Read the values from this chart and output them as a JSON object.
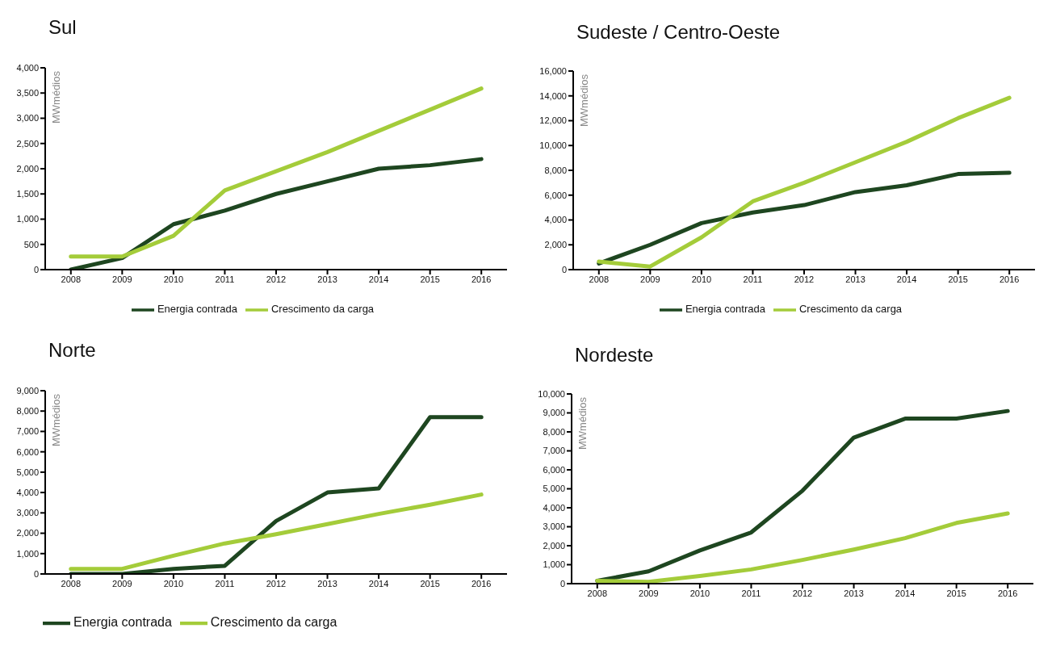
{
  "chart_data": [
    {
      "type": "line",
      "title": "Sul",
      "ylabel": "MWmédios",
      "categories": [
        "2008",
        "2009",
        "2010",
        "2011",
        "2012",
        "2013",
        "2014",
        "2015",
        "2016"
      ],
      "ylim": [
        0,
        4000
      ],
      "yticks": [
        {
          "value": 0,
          "label": "0"
        },
        {
          "value": 500,
          "label": "500"
        },
        {
          "value": 1000,
          "label": "1,000"
        },
        {
          "value": 1500,
          "label": "1,500"
        },
        {
          "value": 2000,
          "label": "2,000"
        },
        {
          "value": 2500,
          "label": "2,500"
        },
        {
          "value": 3000,
          "label": "3,000"
        },
        {
          "value": 3500,
          "label": "3,500"
        },
        {
          "value": 4000,
          "label": "4,000"
        }
      ],
      "grid": false,
      "legend": "bottom",
      "marker": "none",
      "line_style": "solid",
      "series": [
        {
          "name": "Energia contrada",
          "color": "#1e4620",
          "values": [
            0,
            230,
            900,
            1170,
            1500,
            1750,
            2000,
            2070,
            2190
          ]
        },
        {
          "name": "Crescimento da carga",
          "color": "#a4cc3a",
          "values": [
            260,
            260,
            670,
            1570,
            1950,
            2330,
            2750,
            3170,
            3590
          ]
        }
      ]
    },
    {
      "type": "line",
      "title": "Sudeste / Centro-Oeste",
      "ylabel": "MWmédios",
      "categories": [
        "2008",
        "2009",
        "2010",
        "2011",
        "2012",
        "2013",
        "2014",
        "2015",
        "2016"
      ],
      "ylim": [
        0,
        16000
      ],
      "yticks": [
        {
          "value": 0,
          "label": "0"
        },
        {
          "value": 2000,
          "label": "2,000"
        },
        {
          "value": 4000,
          "label": "4,000"
        },
        {
          "value": 6000,
          "label": "6,000"
        },
        {
          "value": 8000,
          "label": "8,000"
        },
        {
          "value": 10000,
          "label": "10,000"
        },
        {
          "value": 12000,
          "label": "12,000"
        },
        {
          "value": 14000,
          "label": "14,000"
        },
        {
          "value": 16000,
          "label": "16,000"
        }
      ],
      "grid": false,
      "legend": "bottom",
      "marker": "none",
      "line_style": "solid",
      "series": [
        {
          "name": "Energia contrada",
          "color": "#1e4620",
          "values": [
            500,
            2000,
            3750,
            4600,
            5200,
            6250,
            6800,
            7700,
            7800
          ]
        },
        {
          "name": "Crescimento da carga",
          "color": "#a4cc3a",
          "values": [
            650,
            250,
            2600,
            5500,
            7000,
            8650,
            10300,
            12200,
            13850
          ]
        }
      ]
    },
    {
      "type": "line",
      "title": "Norte",
      "ylabel": "MWmédios",
      "categories": [
        "2008",
        "2009",
        "2010",
        "2011",
        "2012",
        "2013",
        "2014",
        "2015",
        "2016"
      ],
      "ylim": [
        0,
        9000
      ],
      "yticks": [
        {
          "value": 0,
          "label": "0"
        },
        {
          "value": 1000,
          "label": "1,000"
        },
        {
          "value": 2000,
          "label": "2,000"
        },
        {
          "value": 3000,
          "label": "3,000"
        },
        {
          "value": 4000,
          "label": "4,000"
        },
        {
          "value": 5000,
          "label": "5,000"
        },
        {
          "value": 6000,
          "label": "6,000"
        },
        {
          "value": 7000,
          "label": "7,000"
        },
        {
          "value": 8000,
          "label": "8,000"
        },
        {
          "value": 9000,
          "label": "9,000"
        }
      ],
      "grid": false,
      "legend": "bottom left",
      "marker": "none",
      "line_style": "solid",
      "series": [
        {
          "name": "Energia contrada",
          "color": "#1e4620",
          "values": [
            0,
            0,
            250,
            400,
            2600,
            4000,
            4200,
            7700,
            7700
          ]
        },
        {
          "name": "Crescimento da carga",
          "color": "#a4cc3a",
          "values": [
            250,
            250,
            900,
            1500,
            1950,
            2450,
            2950,
            3400,
            3900
          ]
        }
      ]
    },
    {
      "type": "line",
      "title": "Nordeste",
      "ylabel": "MWmédios",
      "categories": [
        "2008",
        "2009",
        "2010",
        "2011",
        "2012",
        "2013",
        "2014",
        "2015",
        "2016"
      ],
      "ylim": [
        0,
        10000
      ],
      "yticks": [
        {
          "value": 0,
          "label": "0"
        },
        {
          "value": 1000,
          "label": "1,000"
        },
        {
          "value": 2000,
          "label": "2,000"
        },
        {
          "value": 3000,
          "label": "3,000"
        },
        {
          "value": 4000,
          "label": "4,000"
        },
        {
          "value": 5000,
          "label": "5,000"
        },
        {
          "value": 6000,
          "label": "6,000"
        },
        {
          "value": 7000,
          "label": "7,000"
        },
        {
          "value": 8000,
          "label": "8,000"
        },
        {
          "value": 9000,
          "label": "9,000"
        },
        {
          "value": 10000,
          "label": "10,000"
        }
      ],
      "grid": false,
      "legend": false,
      "marker": "none",
      "line_style": "solid",
      "series": [
        {
          "color": "#1e4620",
          "values": [
            150,
            650,
            1750,
            2700,
            4900,
            7700,
            8700,
            8700,
            9100
          ]
        },
        {
          "color": "#a4cc3a",
          "values": [
            150,
            100,
            400,
            750,
            1250,
            1800,
            2400,
            3200,
            3700
          ]
        }
      ]
    }
  ]
}
